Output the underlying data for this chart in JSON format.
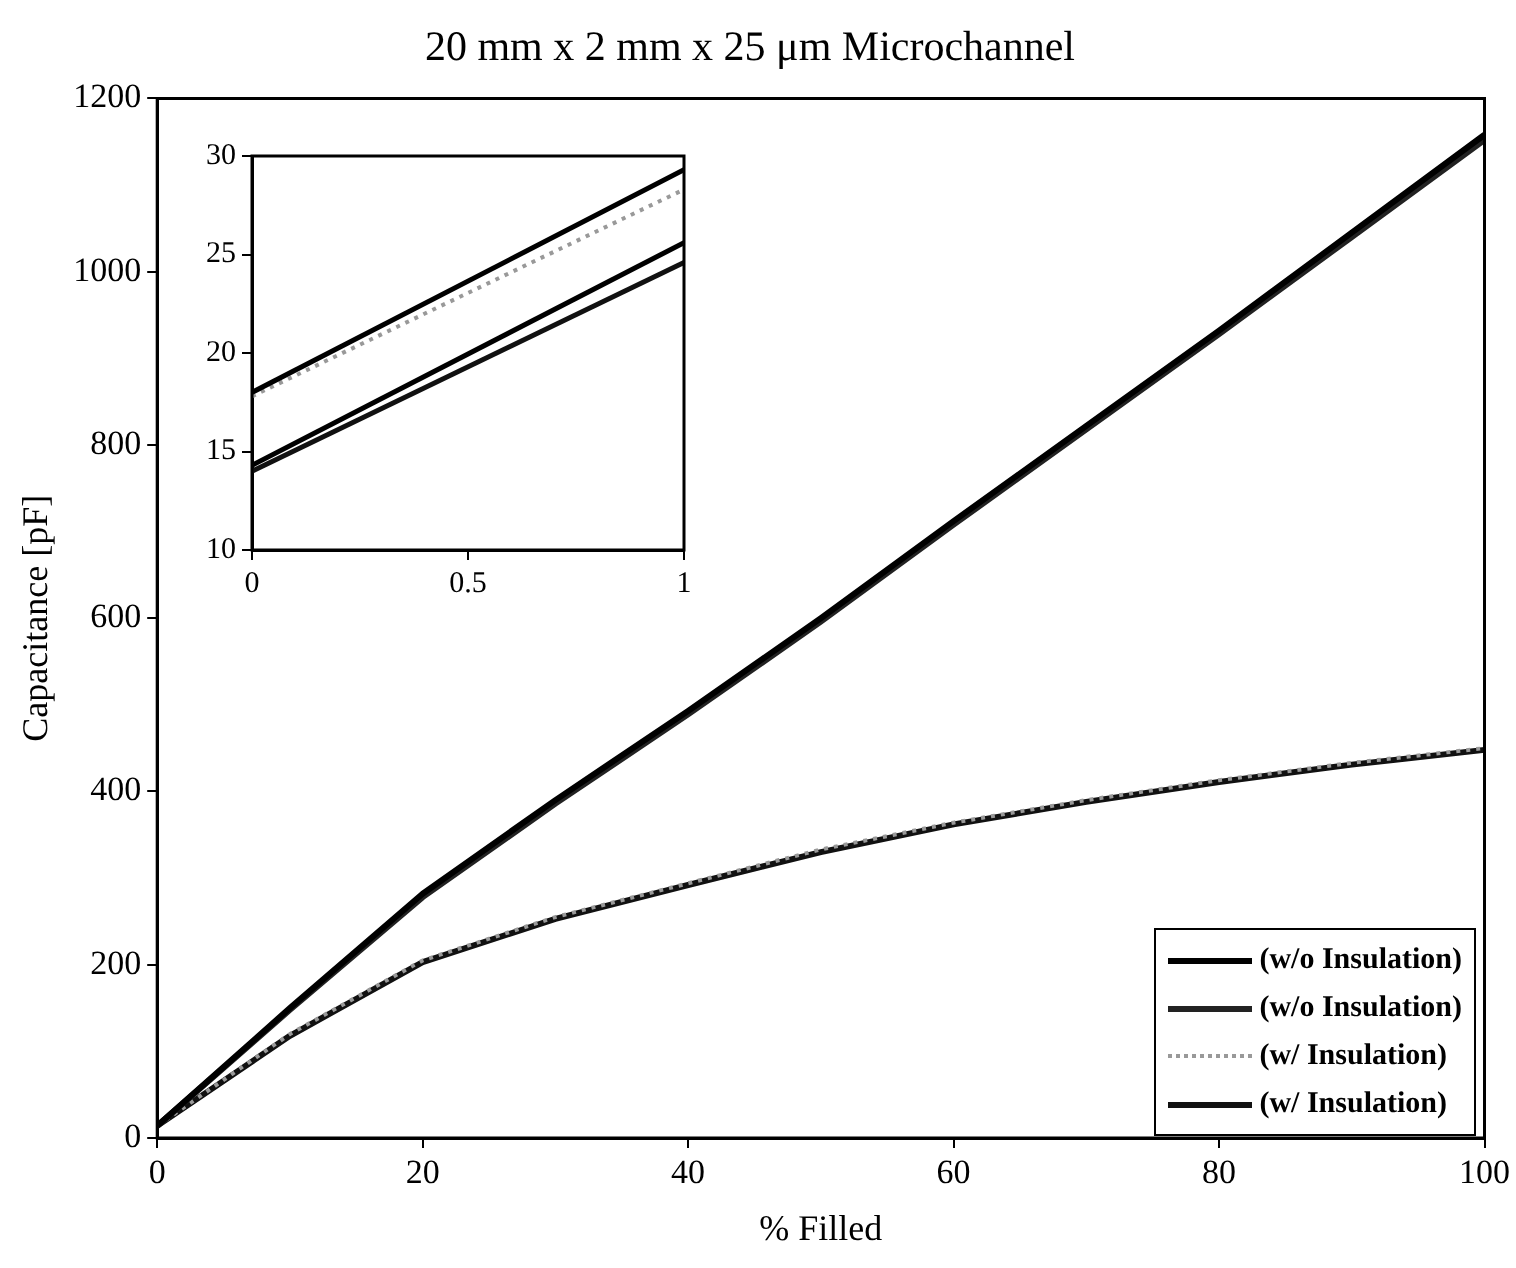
{
  "chart_data": [
    {
      "type": "line",
      "title": "20 mm x 2 mm x 25 μm Microchannel",
      "xlabel": "% Filled",
      "ylabel": "Capacitance [pF]",
      "x": [
        0,
        10,
        20,
        30,
        40,
        50,
        60,
        70,
        80,
        90,
        100
      ],
      "xlim": [
        0,
        100
      ],
      "xticks": [
        0,
        20,
        40,
        60,
        80,
        100
      ],
      "ylim": [
        0,
        1200
      ],
      "yticks": [
        0,
        200,
        400,
        600,
        800,
        1000,
        1200
      ],
      "grid": false,
      "legend": "bottom right",
      "marker": "none",
      "series": [
        {
          "name": "(w/o Insulation)",
          "color": "#000000",
          "line_style": "solid",
          "values": [
            14,
            150,
            282,
            390,
            493,
            600,
            712,
            822,
            932,
            1045,
            1158
          ]
        },
        {
          "name": "(w/o Insulation)",
          "color": "#222222",
          "line_style": "solid",
          "values": [
            14,
            148,
            278,
            386,
            489,
            596,
            708,
            818,
            928,
            1040,
            1152
          ]
        },
        {
          "name": "(w/ Insulation)",
          "color": "#999999",
          "line_style": "dotted",
          "values": [
            14,
            120,
            205,
            255,
            294,
            333,
            364,
            390,
            413,
            433,
            450
          ]
        },
        {
          "name": "(w/ Insulation)",
          "color": "#111111",
          "line_style": "solid",
          "values": [
            14,
            118,
            203,
            253,
            292,
            330,
            362,
            388,
            411,
            431,
            448
          ]
        }
      ]
    },
    {
      "type": "line",
      "x": [
        0,
        1
      ],
      "xlim": [
        0,
        1
      ],
      "xticks": [
        0,
        0.5,
        1
      ],
      "ylim": [
        10,
        30
      ],
      "yticks": [
        10,
        15,
        20,
        25,
        30
      ],
      "grid": false,
      "legend": false,
      "marker": "none",
      "series": [
        {
          "color": "#000000",
          "line_style": "solid",
          "values": [
            18,
            29.3
          ]
        },
        {
          "color": "#999999",
          "line_style": "dotted",
          "values": [
            17.8,
            28.3
          ]
        },
        {
          "color": "#000000",
          "line_style": "solid",
          "values": [
            14.3,
            25.6
          ]
        },
        {
          "color": "#111111",
          "line_style": "solid",
          "values": [
            14,
            24.6
          ]
        }
      ]
    }
  ]
}
